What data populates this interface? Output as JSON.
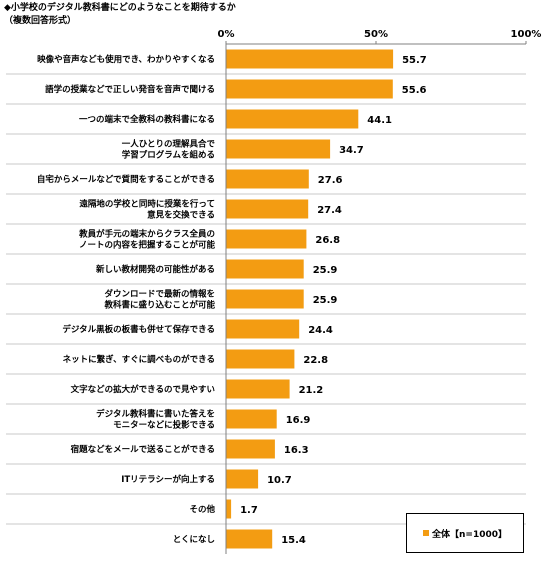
{
  "title": {
    "line1": "◆小学校のデジタル教科書にどのようなことを期待するか",
    "line2": "（複数回答形式）"
  },
  "colors": {
    "bar": "#F39C12",
    "grid": "#808080",
    "separator": "#c8c8c8"
  },
  "chart_data": {
    "type": "bar",
    "orientation": "horizontal",
    "x_ticks": [
      "0%",
      "50%",
      "100%"
    ],
    "xlim": [
      0,
      100
    ],
    "grid": false,
    "legend_position": "bottom-right",
    "categories": [
      [
        "映像や音声なども使用でき、わかりやすくなる"
      ],
      [
        "語学の授業などで正しい発音を音声で聞ける"
      ],
      [
        "一つの端末で全教科の教科書になる"
      ],
      [
        "一人ひとりの理解具合で",
        "学習プログラムを組める"
      ],
      [
        "自宅からメールなどで質問をすることができる"
      ],
      [
        "遠隔地の学校と同時に授業を行って",
        "意見を交換できる"
      ],
      [
        "教員が手元の端末からクラス全員の",
        "ノートの内容を把握することが可能"
      ],
      [
        "新しい教材開発の可能性がある"
      ],
      [
        "ダウンロードで最新の情報を",
        "教科書に盛り込むことが可能"
      ],
      [
        "デジタル黒板の板書も併せて保存できる"
      ],
      [
        "ネットに繋ぎ、すぐに調べものができる"
      ],
      [
        "文字などの拡大ができるので見やすい"
      ],
      [
        "デジタル教科書に書いた答えを",
        "モニターなどに投影できる"
      ],
      [
        "宿題などをメールで送ることができる"
      ],
      [
        "ITリテラシーが向上する"
      ],
      [
        "その他"
      ],
      [
        "とくになし"
      ]
    ],
    "series": [
      {
        "name": "全体【n=1000】",
        "values": [
          55.7,
          55.6,
          44.1,
          34.7,
          27.6,
          27.4,
          26.8,
          25.9,
          25.9,
          24.4,
          22.8,
          21.2,
          16.9,
          16.3,
          10.7,
          1.7,
          15.4
        ],
        "labels": [
          "55.7",
          "55.6",
          "44.1",
          "34.7",
          "27.6",
          "27.4",
          "26.8",
          "25.9",
          "25.9",
          "24.4",
          "22.8",
          "21.2",
          "16.9",
          "16.3",
          "10.7",
          "1.7",
          "15.4"
        ]
      }
    ]
  }
}
